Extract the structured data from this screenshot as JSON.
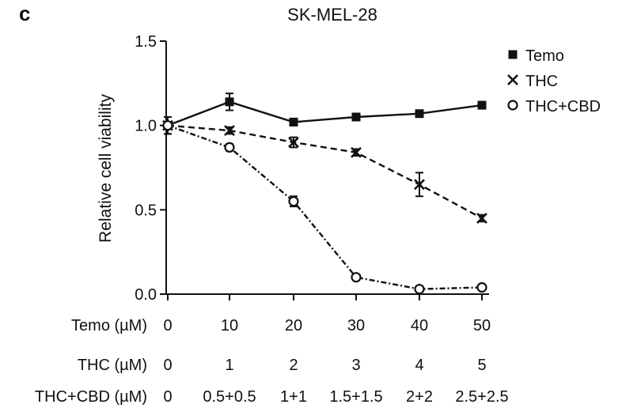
{
  "panel_label": "c",
  "chart_data": {
    "type": "line",
    "title": "SK-MEL-28",
    "xlabel": "",
    "ylabel": "Relative cell viability",
    "ylim": [
      0,
      1.5
    ],
    "yticks": [
      "0.0",
      "0.5",
      "1.0",
      "1.5"
    ],
    "grid": false,
    "legend_position": "top-right",
    "x_index": [
      0,
      1,
      2,
      3,
      4,
      5
    ],
    "x_label_rows": [
      {
        "label": "Temo (µM)",
        "ticks": [
          "0",
          "10",
          "20",
          "30",
          "40",
          "50"
        ]
      },
      {
        "label": "THC (µM)",
        "ticks": [
          "0",
          "1",
          "2",
          "3",
          "4",
          "5"
        ]
      },
      {
        "label": "THC+CBD (µM)",
        "ticks": [
          "0",
          "0.5+0.5",
          "1+1",
          "1.5+1.5",
          "2+2",
          "2.5+2.5"
        ]
      }
    ],
    "series": [
      {
        "name": "Temo",
        "marker": "square",
        "line": "solid",
        "values": [
          1.0,
          1.14,
          1.02,
          1.05,
          1.07,
          1.12
        ],
        "errors": [
          0.05,
          0.05,
          0.02,
          0.02,
          0.02,
          0.02
        ]
      },
      {
        "name": "THC",
        "marker": "x",
        "line": "dashed",
        "values": [
          1.0,
          0.97,
          0.9,
          0.84,
          0.65,
          0.45
        ],
        "errors": [
          0.05,
          0.02,
          0.03,
          0.02,
          0.07,
          0.02
        ]
      },
      {
        "name": "THC+CBD",
        "marker": "circle-open",
        "line": "dash-dot",
        "values": [
          1.0,
          0.87,
          0.55,
          0.1,
          0.03,
          0.04
        ],
        "errors": [
          0.05,
          0.02,
          0.03,
          0.01,
          0.01,
          0.01
        ]
      }
    ]
  }
}
